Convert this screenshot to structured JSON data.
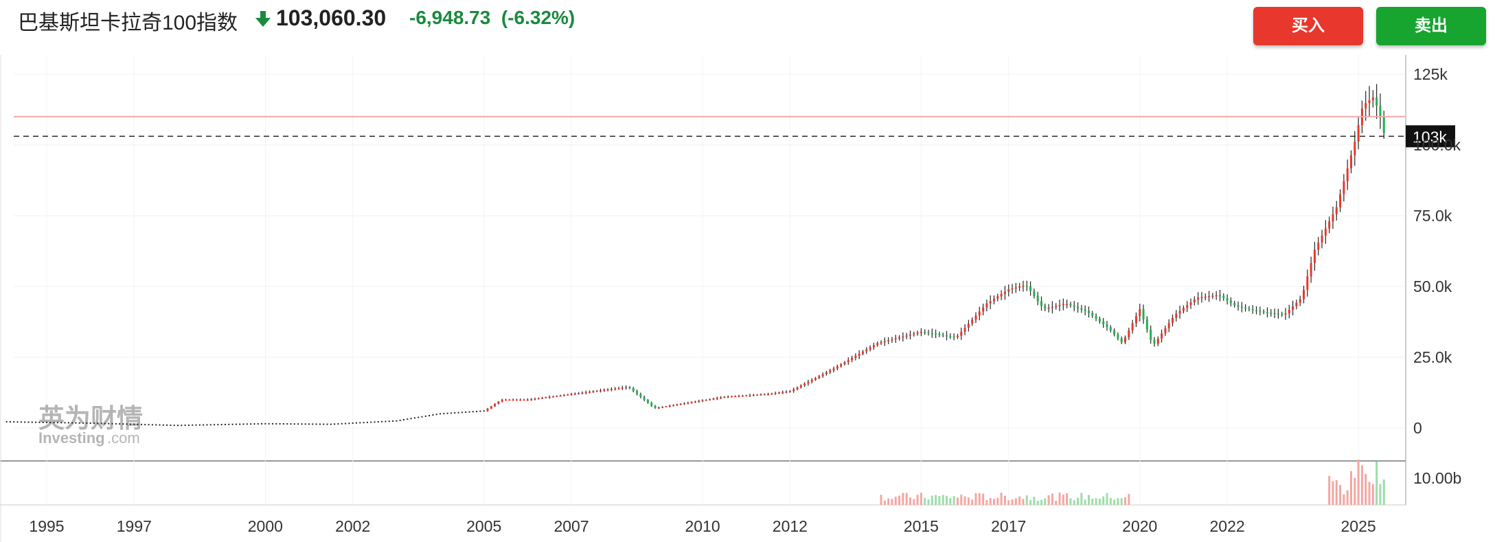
{
  "header": {
    "name": "巴基斯坦卡拉奇100指数",
    "price": "103,060.30",
    "change": "-6,948.73",
    "change_pct": "(-6.32%)",
    "buy_label": "买入",
    "sell_label": "卖出"
  },
  "watermark": {
    "cn": "英为财情",
    "en": "Investing",
    "en_suffix": ".com"
  },
  "colors": {
    "up": "#e8372c",
    "down": "#22b14c",
    "header_down": "#1b8a3f",
    "buy": "#e8372c",
    "sell": "#17a42f"
  },
  "chart_data": {
    "type": "candlestick",
    "x_ticks": [
      "1995",
      "1997",
      "2000",
      "2002",
      "2005",
      "2007",
      "2010",
      "2012",
      "2015",
      "2017",
      "2020",
      "2022",
      "2025"
    ],
    "y_ticks": [
      "125k",
      "100.0k",
      "75.0k",
      "50.0k",
      "25.0k",
      "0"
    ],
    "ylim": [
      0,
      125000
    ],
    "price_label": "103k",
    "last_price": 103060.3,
    "previous_close": 110009,
    "volume_tick": "10.00b",
    "anchors": [
      [
        1994.0,
        2200
      ],
      [
        1996.0,
        1700
      ],
      [
        1998.0,
        900
      ],
      [
        2000.0,
        1500
      ],
      [
        2001.5,
        1300
      ],
      [
        2003.0,
        2500
      ],
      [
        2004.0,
        5000
      ],
      [
        2005.0,
        6000
      ],
      [
        2005.4,
        10000
      ],
      [
        2006.0,
        10000
      ],
      [
        2007.0,
        12000
      ],
      [
        2008.3,
        14500
      ],
      [
        2008.9,
        7000
      ],
      [
        2009.3,
        8000
      ],
      [
        2010.5,
        11000
      ],
      [
        2011.5,
        12000
      ],
      [
        2012.0,
        13000
      ],
      [
        2013.0,
        21000
      ],
      [
        2014.0,
        30000
      ],
      [
        2015.0,
        34000
      ],
      [
        2015.8,
        32000
      ],
      [
        2016.5,
        44000
      ],
      [
        2017.0,
        49000
      ],
      [
        2017.4,
        50500
      ],
      [
        2017.8,
        42000
      ],
      [
        2018.3,
        44000
      ],
      [
        2018.8,
        41000
      ],
      [
        2019.3,
        35000
      ],
      [
        2019.6,
        30000
      ],
      [
        2020.0,
        42000
      ],
      [
        2020.3,
        29000
      ],
      [
        2020.8,
        40000
      ],
      [
        2021.3,
        46000
      ],
      [
        2021.8,
        47000
      ],
      [
        2022.2,
        43000
      ],
      [
        2022.8,
        41000
      ],
      [
        2023.3,
        40000
      ],
      [
        2023.7,
        46000
      ],
      [
        2024.0,
        63000
      ],
      [
        2024.5,
        78000
      ],
      [
        2024.9,
        100000
      ],
      [
        2025.1,
        114000
      ],
      [
        2025.35,
        117000
      ],
      [
        2025.5,
        110000
      ],
      [
        2025.6,
        103060
      ]
    ],
    "volume_note": "monthly volume bars from 2014 onward"
  }
}
